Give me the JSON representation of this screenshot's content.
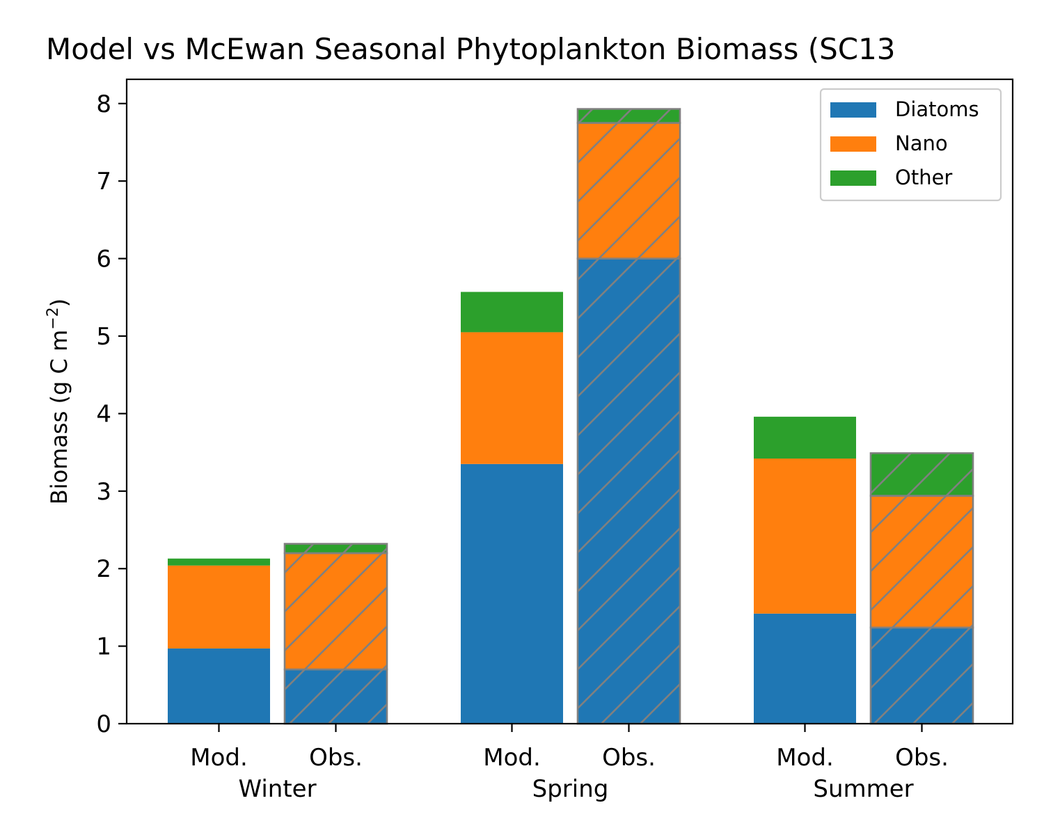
{
  "chart_data": {
    "type": "bar",
    "stacked": true,
    "title": "Model vs McEwan Seasonal Phytoplankton Biomass (SC13",
    "ylabel_main": "Biomass (g C m",
    "ylabel_sup": "−2",
    "ylabel_close": ")",
    "xlabel": "",
    "ylim": [
      0,
      8.3
    ],
    "yticks": [
      "0",
      "1",
      "2",
      "3",
      "4",
      "5",
      "6",
      "7",
      "8"
    ],
    "grid": false,
    "legend_position": "top-right",
    "groups": [
      "Winter",
      "Spring",
      "Summer"
    ],
    "bar_labels": [
      "Mod.",
      "Obs."
    ],
    "series": [
      {
        "name": "Diatoms",
        "color": "#1f77b4"
      },
      {
        "name": "Nano",
        "color": "#ff7f0e"
      },
      {
        "name": "Other",
        "color": "#2ca02c"
      }
    ],
    "hatched_bar": "Obs.",
    "hatch_color": "#808080",
    "values": {
      "Winter": {
        "Mod.": [
          0.97,
          1.07,
          0.09
        ],
        "Obs.": [
          0.7,
          1.5,
          0.12
        ]
      },
      "Spring": {
        "Mod.": [
          3.35,
          1.7,
          0.52
        ],
        "Obs.": [
          6.0,
          1.75,
          0.18
        ]
      },
      "Summer": {
        "Mod.": [
          1.42,
          2.0,
          0.54
        ],
        "Obs.": [
          1.24,
          1.7,
          0.55
        ]
      }
    }
  }
}
